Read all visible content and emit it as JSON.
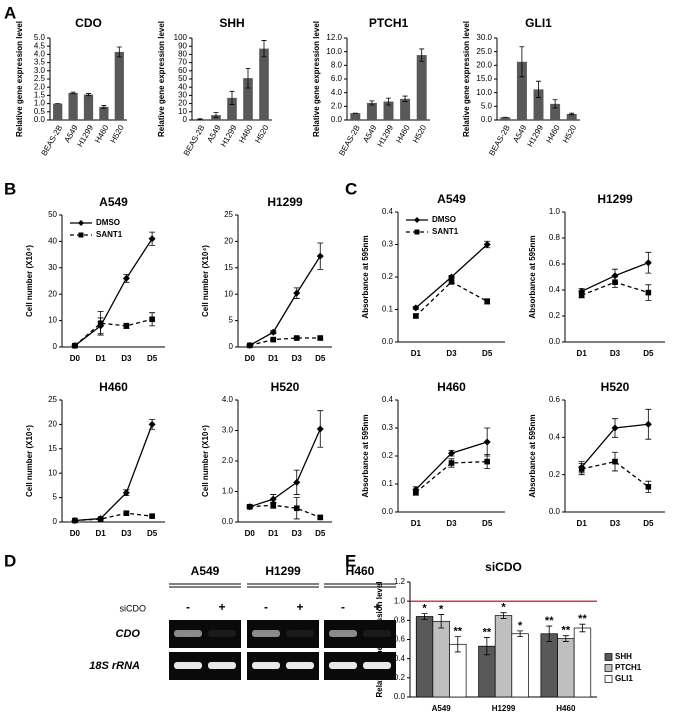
{
  "panel_labels": [
    "A",
    "B",
    "C",
    "D",
    "E"
  ],
  "gel": {
    "groups": [
      "A549",
      "H1299",
      "H460"
    ],
    "row_label": "siCDO",
    "treatments": [
      "-",
      "+"
    ],
    "bands": [
      "CDO",
      "18S rRNA"
    ]
  },
  "chart_data": [
    {
      "type": "bar",
      "title": "CDO",
      "ylabel": "Relative gene expression level",
      "categories": [
        "BEAS-2B",
        "A549",
        "H1299",
        "H460",
        "H520"
      ],
      "values": [
        1.0,
        1.65,
        1.55,
        0.8,
        4.15
      ],
      "errors": [
        0.0,
        0.05,
        0.07,
        0.08,
        0.3
      ],
      "color": "#595959",
      "ylim": [
        0,
        5
      ],
      "yticks": [
        {
          "value": 0,
          "label": "0.0"
        },
        {
          "value": 0.5,
          "label": "0.5"
        },
        {
          "value": 1,
          "label": "1.0"
        },
        {
          "value": 1.5,
          "label": "1.5"
        },
        {
          "value": 2,
          "label": "2.0"
        },
        {
          "value": 2.5,
          "label": "2.5"
        },
        {
          "value": 3,
          "label": "3.0"
        },
        {
          "value": 3.5,
          "label": "3.5"
        },
        {
          "value": 4,
          "label": "4.0"
        },
        {
          "value": 4.5,
          "label": "4.5"
        },
        {
          "value": 5,
          "label": "5.0"
        }
      ]
    },
    {
      "type": "bar",
      "title": "SHH",
      "ylabel": "Relative gene expression level",
      "categories": [
        "BEAS-2B",
        "A549",
        "H1299",
        "H460",
        "H520"
      ],
      "values": [
        1,
        6,
        27,
        51,
        87
      ],
      "errors": [
        0.5,
        3,
        8,
        12,
        10
      ],
      "color": "#595959",
      "ylim": [
        0,
        100
      ],
      "yticks": [
        0,
        10,
        20,
        30,
        40,
        50,
        60,
        70,
        80,
        90,
        100
      ]
    },
    {
      "type": "bar",
      "title": "PTCH1",
      "ylabel": "Relative gene expression level",
      "categories": [
        "BEAS-2B",
        "A549",
        "H1299",
        "H460",
        "H520"
      ],
      "values": [
        1.0,
        2.5,
        2.7,
        3.1,
        9.5
      ],
      "errors": [
        0.0,
        0.3,
        0.5,
        0.4,
        0.9
      ],
      "color": "#595959",
      "ylim": [
        0,
        12
      ],
      "yticks": [
        {
          "value": 0,
          "label": "0.0"
        },
        {
          "value": 2,
          "label": "2.0"
        },
        {
          "value": 4,
          "label": "4.0"
        },
        {
          "value": 6,
          "label": "6.0"
        },
        {
          "value": 8,
          "label": "8.0"
        },
        {
          "value": 10,
          "label": "10.0"
        },
        {
          "value": 12,
          "label": "12.0"
        }
      ]
    },
    {
      "type": "bar",
      "title": "GLI1",
      "ylabel": "Relative gene expression level",
      "categories": [
        "BEAS-2B",
        "A549",
        "H1299",
        "H460",
        "H520"
      ],
      "values": [
        1.0,
        21.3,
        11.2,
        5.9,
        2.2
      ],
      "errors": [
        0.0,
        5.5,
        3,
        1.5,
        0.3
      ],
      "color": "#595959",
      "ylim": [
        0,
        30
      ],
      "yticks": [
        {
          "value": 0,
          "label": "0.0"
        },
        {
          "value": 5,
          "label": "5.0"
        },
        {
          "value": 10,
          "label": "10.0"
        },
        {
          "value": 15,
          "label": "15.0"
        },
        {
          "value": 20,
          "label": "20.0"
        },
        {
          "value": 25,
          "label": "25.0"
        },
        {
          "value": 30,
          "label": "30.0"
        }
      ]
    },
    {
      "type": "line",
      "title": "A549",
      "ylabel": "Cell number (X10⁴)",
      "categories": [
        "D0",
        "D1",
        "D3",
        "D5"
      ],
      "series": [
        {
          "name": "DMSO",
          "color": "#000000",
          "dashed": false,
          "marker": "diamond",
          "values": [
            0.5,
            8,
            26,
            41
          ],
          "errors": [
            0.3,
            3,
            1.5,
            2.5
          ]
        },
        {
          "name": "SANT1",
          "color": "#000000",
          "dashed": true,
          "marker": "square",
          "values": [
            0.5,
            9,
            8,
            10.5
          ],
          "errors": [
            0.3,
            4.5,
            1,
            2.5
          ]
        }
      ],
      "ylim": [
        0,
        50
      ],
      "yticks": [
        0,
        10,
        20,
        30,
        40,
        50
      ]
    },
    {
      "type": "line",
      "title": "H1299",
      "ylabel": "Cell number (X10⁴)",
      "categories": [
        "D0",
        "D1",
        "D3",
        "D5"
      ],
      "series": [
        {
          "color": "#000000",
          "dashed": false,
          "marker": "diamond",
          "values": [
            0.3,
            2.8,
            10.2,
            17.2
          ],
          "errors": [
            0.1,
            0.3,
            1,
            2.5
          ]
        },
        {
          "color": "#000000",
          "dashed": true,
          "marker": "square",
          "values": [
            0.3,
            1.4,
            1.7,
            1.7
          ],
          "errors": [
            0.1,
            0.2,
            0.2,
            0.2
          ]
        }
      ],
      "ylim": [
        0,
        25
      ],
      "yticks": [
        0,
        5,
        10,
        15,
        20,
        25
      ]
    },
    {
      "type": "line",
      "title": "H460",
      "ylabel": "Cell number (X10⁴)",
      "categories": [
        "D0",
        "D1",
        "D3",
        "D5"
      ],
      "series": [
        {
          "color": "#000000",
          "dashed": false,
          "marker": "diamond",
          "values": [
            0.3,
            0.7,
            6,
            20
          ],
          "errors": [
            0.1,
            0.1,
            0.6,
            1
          ]
        },
        {
          "color": "#000000",
          "dashed": true,
          "marker": "square",
          "values": [
            0.3,
            0.6,
            1.8,
            1.2
          ],
          "errors": [
            0.1,
            0.1,
            0.4,
            0.2
          ]
        }
      ],
      "ylim": [
        0,
        25
      ],
      "yticks": [
        0,
        5,
        10,
        15,
        20,
        25
      ]
    },
    {
      "type": "line",
      "title": "H520",
      "ylabel": "Cell number (X10⁴)",
      "categories": [
        "D0",
        "D1",
        "D3",
        "D5"
      ],
      "series": [
        {
          "color": "#000000",
          "dashed": false,
          "marker": "diamond",
          "values": [
            0.5,
            0.75,
            1.3,
            3.05
          ],
          "errors": [
            0.05,
            0.15,
            0.4,
            0.6
          ]
        },
        {
          "color": "#000000",
          "dashed": true,
          "marker": "square",
          "values": [
            0.5,
            0.55,
            0.45,
            0.15
          ],
          "errors": [
            0.05,
            0.1,
            0.35,
            0.05
          ]
        }
      ],
      "ylim": [
        0,
        4
      ],
      "yticks": [
        {
          "value": 0,
          "label": "0.0"
        },
        {
          "value": 1,
          "label": "1.0"
        },
        {
          "value": 2,
          "label": "2.0"
        },
        {
          "value": 3,
          "label": "3.0"
        },
        {
          "value": 4,
          "label": "4.0"
        }
      ]
    },
    {
      "type": "line",
      "title": "A549",
      "ylabel": "Absorbance at 595nm",
      "categories": [
        "D1",
        "D3",
        "D5"
      ],
      "series": [
        {
          "name": "DMSO",
          "color": "#000000",
          "dashed": false,
          "marker": "diamond",
          "values": [
            0.105,
            0.2,
            0.3
          ],
          "errors": [
            0.005,
            0.005,
            0.01
          ]
        },
        {
          "name": "SANT1",
          "color": "#000000",
          "dashed": true,
          "marker": "square",
          "values": [
            0.08,
            0.185,
            0.125
          ],
          "errors": [
            0.005,
            0.005,
            0.008
          ]
        }
      ],
      "ylim": [
        0,
        0.4
      ],
      "yticks": [
        {
          "value": 0,
          "label": "0.0"
        },
        {
          "value": 0.1,
          "label": "0.1"
        },
        {
          "value": 0.2,
          "label": "0.2"
        },
        {
          "value": 0.3,
          "label": "0.3"
        },
        {
          "value": 0.4,
          "label": "0.4"
        }
      ]
    },
    {
      "type": "line",
      "title": "H1299",
      "ylabel": "Absorbance at 595nm",
      "categories": [
        "D1",
        "D3",
        "D5"
      ],
      "series": [
        {
          "color": "#000000",
          "dashed": false,
          "marker": "diamond",
          "values": [
            0.39,
            0.51,
            0.61
          ],
          "errors": [
            0.02,
            0.05,
            0.08
          ]
        },
        {
          "color": "#000000",
          "dashed": true,
          "marker": "square",
          "values": [
            0.36,
            0.46,
            0.38
          ],
          "errors": [
            0.02,
            0.04,
            0.06
          ]
        }
      ],
      "ylim": [
        0,
        1
      ],
      "yticks": [
        {
          "value": 0,
          "label": "0.0"
        },
        {
          "value": 0.2,
          "label": "0.2"
        },
        {
          "value": 0.4,
          "label": "0.4"
        },
        {
          "value": 0.6,
          "label": "0.6"
        },
        {
          "value": 0.8,
          "label": "0.8"
        },
        {
          "value": 1,
          "label": "1.0"
        }
      ]
    },
    {
      "type": "line",
      "title": "H460",
      "ylabel": "Absorbance at 595nm",
      "categories": [
        "D1",
        "D3",
        "D5"
      ],
      "series": [
        {
          "color": "#000000",
          "dashed": false,
          "marker": "diamond",
          "values": [
            0.08,
            0.21,
            0.25
          ],
          "errors": [
            0.01,
            0.01,
            0.05
          ]
        },
        {
          "color": "#000000",
          "dashed": true,
          "marker": "square",
          "values": [
            0.07,
            0.175,
            0.18
          ],
          "errors": [
            0.01,
            0.015,
            0.025
          ]
        }
      ],
      "ylim": [
        0,
        0.4
      ],
      "yticks": [
        {
          "value": 0,
          "label": "0.0"
        },
        {
          "value": 0.1,
          "label": "0.1"
        },
        {
          "value": 0.2,
          "label": "0.2"
        },
        {
          "value": 0.3,
          "label": "0.3"
        },
        {
          "value": 0.4,
          "label": "0.4"
        }
      ]
    },
    {
      "type": "line",
      "title": "H520",
      "ylabel": "Absorbance at 595nm",
      "categories": [
        "D1",
        "D3",
        "D5"
      ],
      "series": [
        {
          "color": "#000000",
          "dashed": false,
          "marker": "diamond",
          "values": [
            0.24,
            0.45,
            0.47
          ],
          "errors": [
            0.03,
            0.05,
            0.08
          ]
        },
        {
          "color": "#000000",
          "dashed": true,
          "marker": "square",
          "values": [
            0.23,
            0.27,
            0.135
          ],
          "errors": [
            0.03,
            0.05,
            0.03
          ]
        }
      ],
      "ylim": [
        0,
        0.6
      ],
      "yticks": [
        {
          "value": 0,
          "label": "0.0"
        },
        {
          "value": 0.2,
          "label": "0.2"
        },
        {
          "value": 0.4,
          "label": "0.4"
        },
        {
          "value": 0.6,
          "label": "0.6"
        }
      ]
    },
    {
      "type": "grouped_bar",
      "title": "siCDO",
      "ylabel": "Relative gene expression level",
      "categories": [
        "A549",
        "H1299",
        "H460"
      ],
      "series": [
        {
          "name": "SHH",
          "color": "#595959",
          "values": [
            0.84,
            0.53,
            0.66
          ],
          "errors": [
            0.03,
            0.09,
            0.08
          ],
          "significance": [
            "*",
            "**",
            "**"
          ]
        },
        {
          "name": "PTCH1",
          "color": "#bfbfbf",
          "values": [
            0.79,
            0.85,
            0.61
          ],
          "errors": [
            0.07,
            0.03,
            0.03
          ],
          "significance": [
            "*",
            "*",
            "**"
          ]
        },
        {
          "name": "GLI1",
          "color": "#ffffff",
          "values": [
            0.55,
            0.66,
            0.72
          ],
          "errors": [
            0.08,
            0.03,
            0.04
          ],
          "significance": [
            "**",
            "*",
            "**"
          ]
        }
      ],
      "reference_line": 1.0,
      "reference_color": "#c00000",
      "legend": "right",
      "ylim": [
        0,
        1.2
      ],
      "yticks": [
        {
          "value": 0,
          "label": "0.0"
        },
        {
          "value": 0.2,
          "label": "0.2"
        },
        {
          "value": 0.4,
          "label": "0.4"
        },
        {
          "value": 0.6,
          "label": "0.6"
        },
        {
          "value": 0.8,
          "label": "0.8"
        },
        {
          "value": 1,
          "label": "1.0"
        },
        {
          "value": 1.2,
          "label": "1.2"
        }
      ]
    }
  ]
}
